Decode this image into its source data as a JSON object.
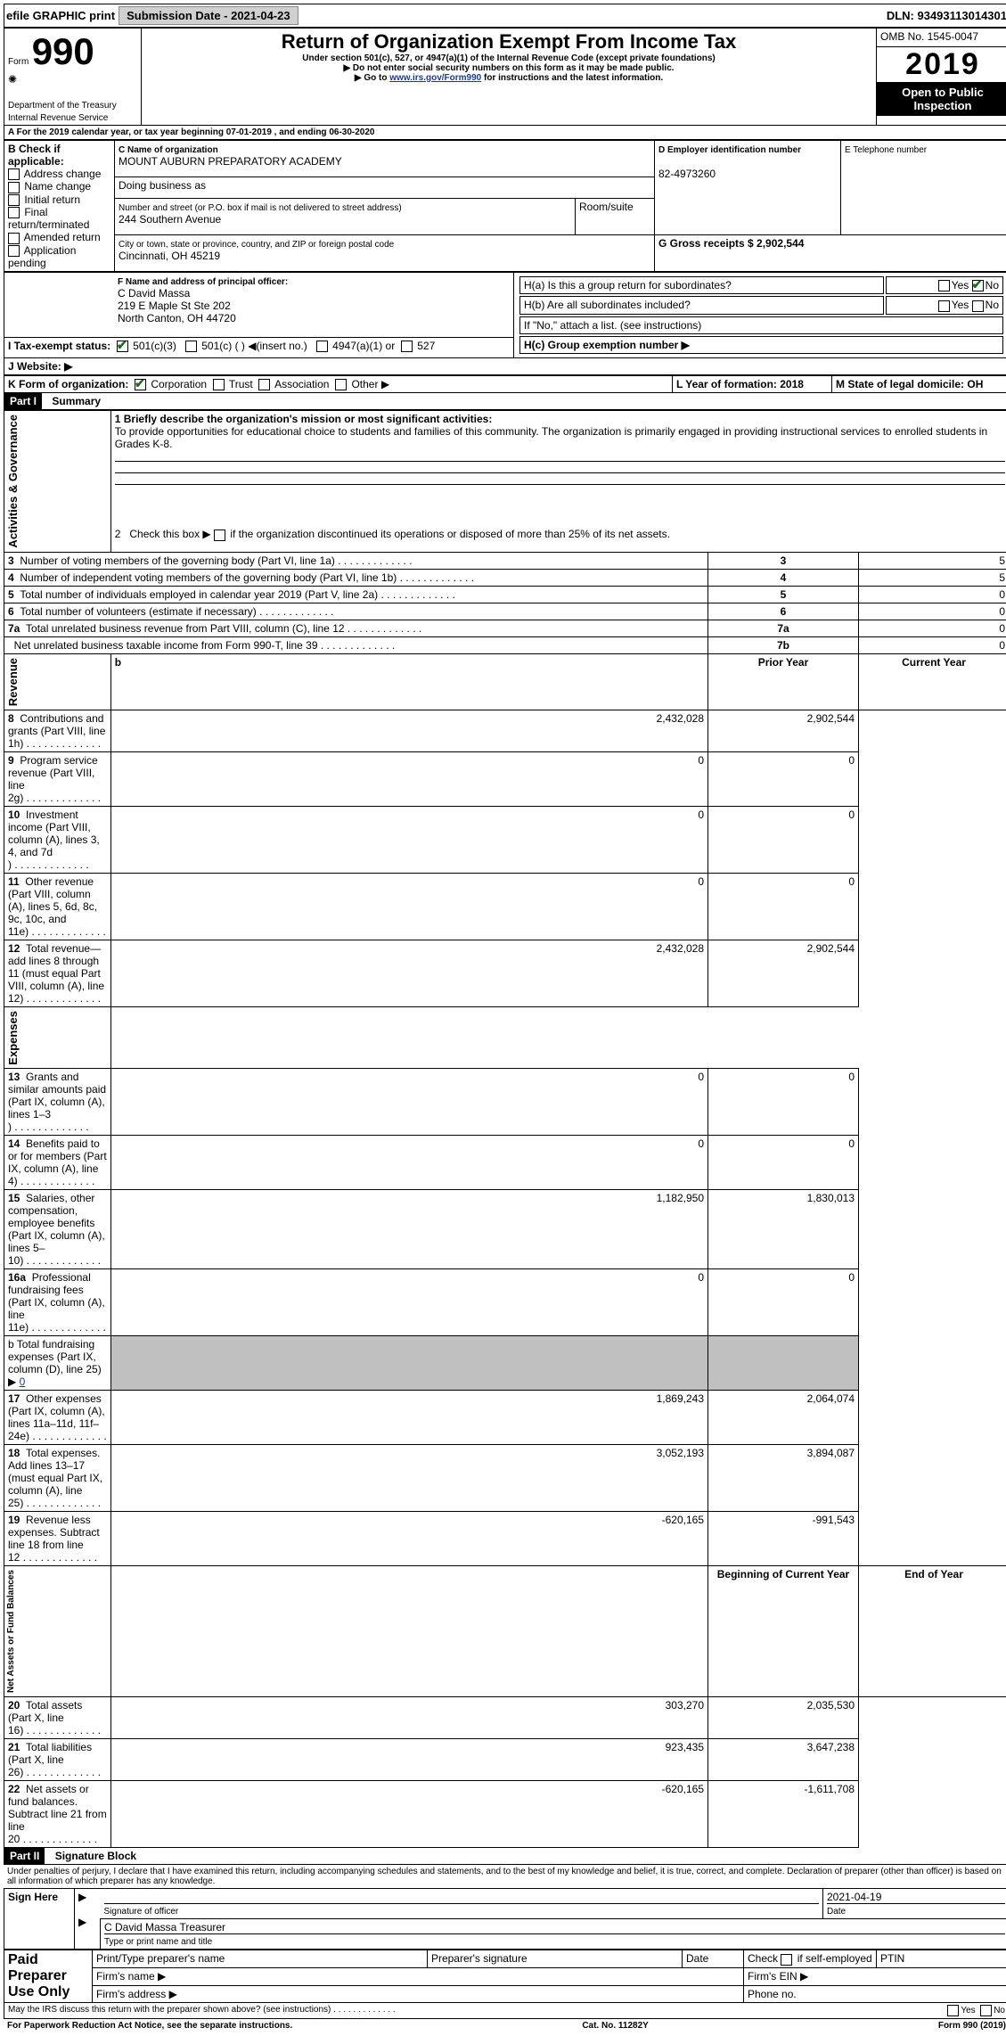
{
  "topbar": {
    "efile": "efile GRAPHIC print",
    "sub_label": "Submission Date - 2021-04-23",
    "dln": "DLN: 93493113014301"
  },
  "header": {
    "form_label": "Form",
    "form_no": "990",
    "dept": "Department of the Treasury\nInternal Revenue Service",
    "title": "Return of Organization Exempt From Income Tax",
    "subtitle": "Under section 501(c), 527, or 4947(a)(1) of the Internal Revenue Code (except private foundations)",
    "note1": "Do not enter social security numbers on this form as it may be made public.",
    "note2_pre": "Go to ",
    "note2_link": "www.irs.gov/Form990",
    "note2_post": " for instructions and the latest information.",
    "omb": "OMB No. 1545-0047",
    "year": "2019",
    "open": "Open to Public Inspection"
  },
  "sectionA": {
    "line": "A For the 2019 calendar year, or tax year beginning 07-01-2019    , and ending 06-30-2020",
    "b_label": "B Check if applicable:",
    "b_items": [
      "Address change",
      "Name change",
      "Initial return",
      "Final return/terminated",
      "Amended return",
      "Application pending"
    ],
    "c_name_label": "C Name of organization",
    "c_name": "MOUNT AUBURN PREPARATORY ACADEMY",
    "dba_label": "Doing business as",
    "addr_label": "Number and street (or P.O. box if mail is not delivered to street address)",
    "addr": "244 Southern Avenue",
    "room_label": "Room/suite",
    "city_label": "City or town, state or province, country, and ZIP or foreign postal code",
    "city": "Cincinnati, OH  45219",
    "d_label": "D Employer identification number",
    "d_val": "82-4973260",
    "e_label": "E Telephone number",
    "g_label": "G Gross receipts $ 2,902,544",
    "f_label": "F  Name and address of principal officer:",
    "f_name": "C David Massa",
    "f_addr1": "219 E Maple St Ste 202",
    "f_addr2": "North Canton, OH  44720",
    "ha_label": "H(a)  Is this a group return for subordinates?",
    "hb_label": "H(b)  Are all subordinates included?",
    "hb_note": "If \"No,\" attach a list. (see instructions)",
    "hc_label": "H(c)  Group exemption number ▶",
    "yes": "Yes",
    "no": "No",
    "i_label": "I  Tax-exempt status:",
    "i_501c3": "501(c)(3)",
    "i_501c": "501(c) (  ) ◀(insert no.)",
    "i_4947": "4947(a)(1) or",
    "i_527": "527",
    "j_label": "J  Website: ▶",
    "k_label": "K Form of organization:",
    "k_corp": "Corporation",
    "k_trust": "Trust",
    "k_assoc": "Association",
    "k_other": "Other ▶",
    "l_label": "L Year of formation: 2018",
    "m_label": "M State of legal domicile: OH"
  },
  "part1": {
    "header": "Part I",
    "title": "Summary",
    "vert_act": "Activities & Governance",
    "vert_rev": "Revenue",
    "vert_exp": "Expenses",
    "vert_net": "Net Assets or Fund Balances",
    "l1_label": "1  Briefly describe the organization's mission or most significant activities:",
    "l1_text": "To provide opportunities for educational choice to students and families of this community. The organization is primarily engaged in providing instructional services to enrolled students in Grades K-8.",
    "l2": "2    Check this box ▶        if the organization discontinued its operations or disposed of more than 25% of its net assets.",
    "rows_gov": [
      {
        "n": "3",
        "t": "Number of voting members of the governing body (Part VI, line 1a)",
        "box": "3",
        "v": "5"
      },
      {
        "n": "4",
        "t": "Number of independent voting members of the governing body (Part VI, line 1b)",
        "box": "4",
        "v": "5"
      },
      {
        "n": "5",
        "t": "Total number of individuals employed in calendar year 2019 (Part V, line 2a)",
        "box": "5",
        "v": "0"
      },
      {
        "n": "6",
        "t": "Total number of volunteers (estimate if necessary)",
        "box": "6",
        "v": "0"
      },
      {
        "n": "7a",
        "t": "Total unrelated business revenue from Part VIII, column (C), line 12",
        "box": "7a",
        "v": "0"
      },
      {
        "n": "",
        "t": "Net unrelated business taxable income from Form 990-T, line 39",
        "box": "7b",
        "v": "0"
      }
    ],
    "prior_hdr": "Prior Year",
    "curr_hdr": "Current Year",
    "rows_rev": [
      {
        "n": "8",
        "t": "Contributions and grants (Part VIII, line 1h)",
        "p": "2,432,028",
        "c": "2,902,544"
      },
      {
        "n": "9",
        "t": "Program service revenue (Part VIII, line 2g)",
        "p": "0",
        "c": "0"
      },
      {
        "n": "10",
        "t": "Investment income (Part VIII, column (A), lines 3, 4, and 7d )",
        "p": "0",
        "c": "0"
      },
      {
        "n": "11",
        "t": "Other revenue (Part VIII, column (A), lines 5, 6d, 8c, 9c, 10c, and 11e)",
        "p": "0",
        "c": "0"
      },
      {
        "n": "12",
        "t": "Total revenue—add lines 8 through 11 (must equal Part VIII, column (A), line 12)",
        "p": "2,432,028",
        "c": "2,902,544"
      }
    ],
    "rows_exp": [
      {
        "n": "13",
        "t": "Grants and similar amounts paid (Part IX, column (A), lines 1–3 )",
        "p": "0",
        "c": "0"
      },
      {
        "n": "14",
        "t": "Benefits paid to or for members (Part IX, column (A), line 4)",
        "p": "0",
        "c": "0"
      },
      {
        "n": "15",
        "t": "Salaries, other compensation, employee benefits (Part IX, column (A), lines 5–10)",
        "p": "1,182,950",
        "c": "1,830,013"
      },
      {
        "n": "16a",
        "t": "Professional fundraising fees (Part IX, column (A), line 11e)",
        "p": "0",
        "c": "0"
      }
    ],
    "l16b": "b  Total fundraising expenses (Part IX, column (D), line 25) ▶",
    "l16b_val": "0",
    "rows_exp2": [
      {
        "n": "17",
        "t": "Other expenses (Part IX, column (A), lines 11a–11d, 11f–24e)",
        "p": "1,869,243",
        "c": "2,064,074"
      },
      {
        "n": "18",
        "t": "Total expenses. Add lines 13–17 (must equal Part IX, column (A), line 25)",
        "p": "3,052,193",
        "c": "3,894,087"
      },
      {
        "n": "19",
        "t": "Revenue less expenses. Subtract line 18 from line 12",
        "p": "-620,165",
        "c": "-991,543"
      }
    ],
    "beg_hdr": "Beginning of Current Year",
    "end_hdr": "End of Year",
    "rows_net": [
      {
        "n": "20",
        "t": "Total assets (Part X, line 16)",
        "p": "303,270",
        "c": "2,035,530"
      },
      {
        "n": "21",
        "t": "Total liabilities (Part X, line 26)",
        "p": "923,435",
        "c": "3,647,238"
      },
      {
        "n": "22",
        "t": "Net assets or fund balances. Subtract line 21 from line 20",
        "p": "-620,165",
        "c": "-1,611,708"
      }
    ]
  },
  "part2": {
    "header": "Part II",
    "title": "Signature Block",
    "decl": "Under penalties of perjury, I declare that I have examined this return, including accompanying schedules and statements, and to the best of my knowledge and belief, it is true, correct, and complete. Declaration of preparer (other than officer) is based on all information of which preparer has any knowledge.",
    "sign_here": "Sign Here",
    "sig_officer": "Signature of officer",
    "sig_date_v": "2021-04-19",
    "sig_date": "Date",
    "officer_name": "C David Massa  Treasurer",
    "type_name": "Type or print name and title",
    "paid": "Paid Preparer Use Only",
    "prep_name": "Print/Type preparer's name",
    "prep_sig": "Preparer's signature",
    "date": "Date",
    "check_self": "Check        if self-employed",
    "ptin": "PTIN",
    "firm_name": "Firm's name    ▶",
    "firm_ein": "Firm's EIN ▶",
    "firm_addr": "Firm's address ▶",
    "phone": "Phone no."
  },
  "footer": {
    "discuss": "May the IRS discuss this return with the preparer shown above? (see instructions)",
    "paperwork": "For Paperwork Reduction Act Notice, see the separate instructions.",
    "cat": "Cat. No. 11282Y",
    "form": "Form 990 (2019)"
  }
}
